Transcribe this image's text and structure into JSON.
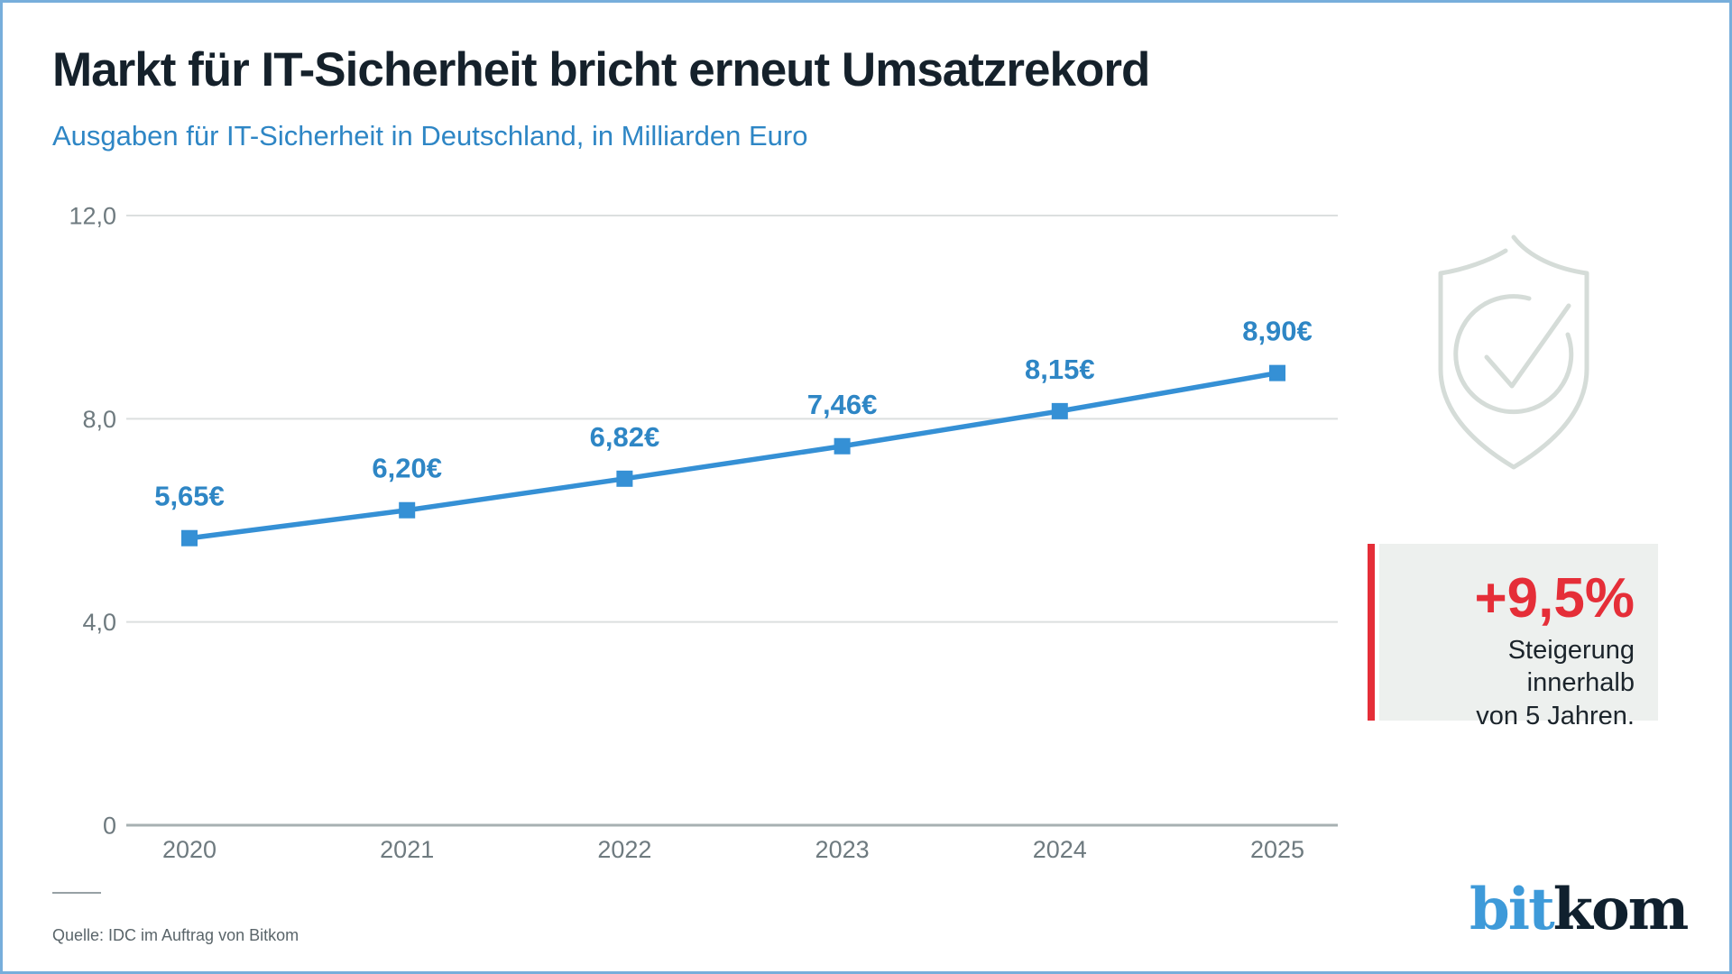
{
  "header": {
    "title": "Markt für IT-Sicherheit bricht erneut Umsatzrekord",
    "subtitle": "Ausgaben für IT-Sicherheit in Deutschland, in Milliarden Euro"
  },
  "chart_data": {
    "type": "line",
    "categories": [
      "2020",
      "2021",
      "2022",
      "2023",
      "2024",
      "2025"
    ],
    "values": [
      5.65,
      6.2,
      6.82,
      7.46,
      8.15,
      8.9
    ],
    "value_labels": [
      "5,65€",
      "6,20€",
      "6,82€",
      "7,46€",
      "8,15€",
      "8,90€"
    ],
    "ylim": [
      0,
      12
    ],
    "y_ticks": [
      {
        "value": 0,
        "label": "0"
      },
      {
        "value": 4,
        "label": "4,0"
      },
      {
        "value": 8,
        "label": "8,0"
      },
      {
        "value": 12,
        "label": "12,0"
      }
    ],
    "grid": true,
    "legend": "none",
    "marker": "square",
    "title": "Ausgaben für IT-Sicherheit in Deutschland, in Milliarden Euro",
    "xlabel": "",
    "ylabel": ""
  },
  "callout": {
    "headline": "+9,5%",
    "line1": "Steigerung innerhalb",
    "line2": "von 5 Jahren."
  },
  "footer": {
    "source": "Quelle: IDC im Auftrag von Bitkom"
  },
  "logo": {
    "part1": "bit",
    "part2": "kom"
  },
  "colors": {
    "accent_blue": "#2e86c5",
    "line_blue": "#3590d5",
    "accent_red": "#e52e38",
    "title_dark": "#15212b",
    "axis_text_gray": "#6e7a7f",
    "grid_gray": "#dcdfdf",
    "zero_axis_gray": "#a7b0b2",
    "icon_gray": "#d5dcd8",
    "callout_bg": "#edf0ee",
    "logo_blue": "#3e9ad9",
    "logo_dark": "#10202e",
    "border_blue": "#77aedb"
  }
}
